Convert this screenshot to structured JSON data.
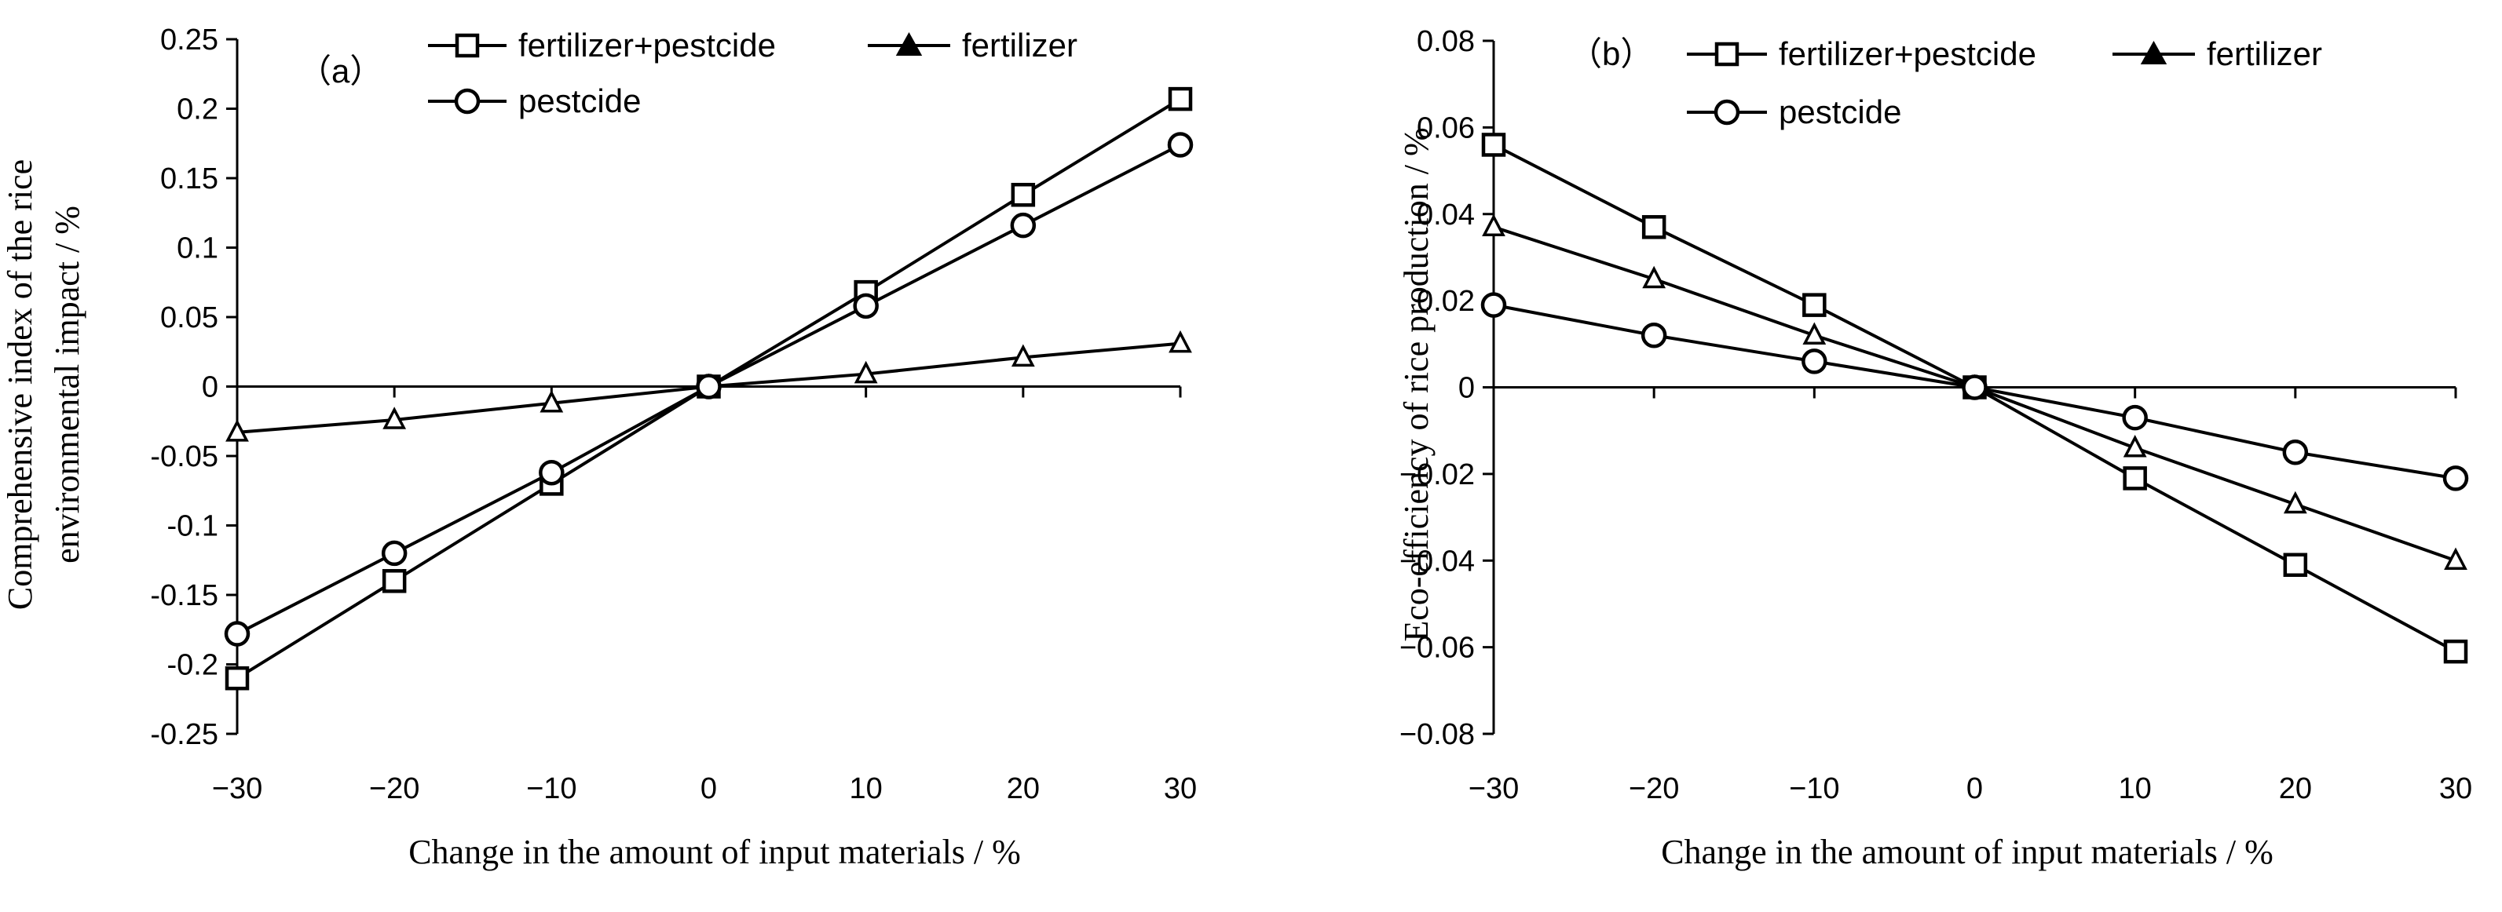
{
  "chart_data": [
    {
      "type": "line",
      "panel": "（a）",
      "title": "",
      "xlabel": "Change  in the amount of input materials / %",
      "ylabel_lines": [
        "Comprehensive index  of the rice",
        "environmental impact / %"
      ],
      "x": [
        -30,
        -20,
        -10,
        0,
        10,
        20,
        30
      ],
      "xticks": [
        -30,
        -20,
        -10,
        0,
        10,
        20,
        30
      ],
      "xtick_labels": [
        "−30",
        "−20",
        "−10",
        "0",
        "10",
        "20",
        "30"
      ],
      "ylim": [
        -0.25,
        0.25
      ],
      "yticks": [
        -0.25,
        -0.2,
        -0.15,
        -0.1,
        -0.05,
        0,
        0.05,
        0.1,
        0.15,
        0.2,
        0.25
      ],
      "ytick_labels": [
        "-0.25",
        "-0.2",
        "-0.15",
        "-0.1",
        "-0.05",
        "0",
        "0.05",
        "0.1",
        "0.15",
        "0.2",
        "0.25"
      ],
      "legend_position": "top",
      "series": [
        {
          "name": "fertilizer+pestcide",
          "marker": "square",
          "values": [
            -0.21,
            -0.14,
            -0.07,
            0,
            0.068,
            0.138,
            0.207
          ]
        },
        {
          "name": "fertilizer",
          "marker": "triangle",
          "values": [
            -0.033,
            -0.024,
            -0.012,
            0,
            0.009,
            0.021,
            0.031
          ]
        },
        {
          "name": "pestcide",
          "marker": "circle",
          "values": [
            -0.178,
            -0.12,
            -0.062,
            0,
            0.058,
            0.116,
            0.174
          ]
        }
      ]
    },
    {
      "type": "line",
      "panel": "（b）",
      "title": "",
      "xlabel": "Change  in the amount of input materials / %",
      "ylabel_lines": [
        "Eco-efficiency  of  rice  production / %"
      ],
      "x": [
        -30,
        -20,
        -10,
        0,
        10,
        20,
        30
      ],
      "xticks": [
        -30,
        -20,
        -10,
        0,
        10,
        20,
        30
      ],
      "xtick_labels": [
        "−30",
        "−20",
        "−10",
        "0",
        "10",
        "20",
        "30"
      ],
      "ylim": [
        -0.08,
        0.08
      ],
      "yticks": [
        -0.08,
        -0.06,
        -0.04,
        -0.02,
        0,
        0.02,
        0.04,
        0.06,
        0.08
      ],
      "ytick_labels": [
        "−0.08",
        "−0.06",
        "−0.04",
        "−0.02",
        "0",
        "0.02",
        "0.04",
        "0.06",
        "0.08"
      ],
      "legend_position": "top",
      "series": [
        {
          "name": "fertilizer+pestcide",
          "marker": "square",
          "values": [
            0.056,
            0.037,
            0.019,
            0,
            -0.021,
            -0.041,
            -0.061
          ]
        },
        {
          "name": "fertilizer",
          "marker": "triangle",
          "values": [
            0.037,
            0.025,
            0.012,
            0,
            -0.014,
            -0.027,
            -0.04
          ]
        },
        {
          "name": "pestcide",
          "marker": "circle",
          "values": [
            0.019,
            0.012,
            0.006,
            0,
            -0.007,
            -0.015,
            -0.021
          ]
        }
      ]
    }
  ]
}
